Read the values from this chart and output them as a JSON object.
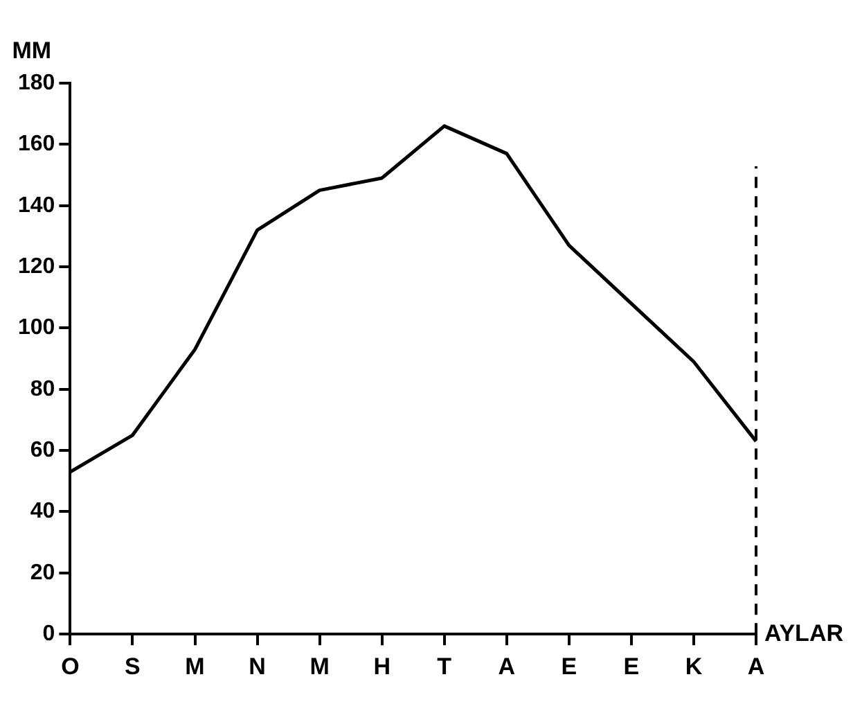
{
  "chart_data": {
    "type": "line",
    "ylabel": "MM",
    "xlabel": "AYLAR",
    "categories": [
      "O",
      "S",
      "M",
      "N",
      "M",
      "H",
      "T",
      "A",
      "E",
      "E",
      "K",
      "A"
    ],
    "values": [
      53,
      65,
      93,
      132,
      145,
      149,
      166,
      157,
      127,
      108,
      89,
      63
    ],
    "color": "#000000",
    "ylim": [
      0,
      180
    ],
    "yticks": [
      0,
      20,
      40,
      60,
      80,
      100,
      120,
      140,
      160,
      180
    ],
    "grid": false,
    "legend": false,
    "marker": "none",
    "line_style": "solid"
  }
}
